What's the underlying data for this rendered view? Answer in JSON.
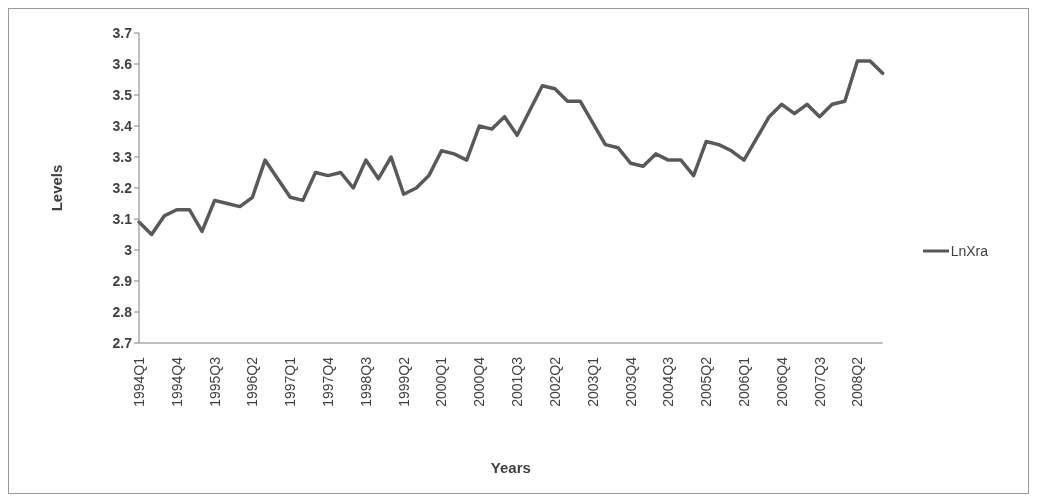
{
  "chart_data": {
    "type": "line",
    "xlabel": "Years",
    "ylabel": "Levels",
    "categories": [
      "1994Q1",
      null,
      null,
      "1994Q4",
      null,
      null,
      "1995Q3",
      null,
      null,
      "1996Q2",
      null,
      null,
      "1997Q1",
      null,
      null,
      "1997Q4",
      null,
      null,
      "1998Q3",
      null,
      null,
      "1999Q2",
      null,
      null,
      "2000Q1",
      null,
      null,
      "2000Q4",
      null,
      null,
      "2001Q3",
      null,
      null,
      "2002Q2",
      null,
      null,
      "2003Q1",
      null,
      null,
      "2003Q4",
      null,
      null,
      "2004Q3",
      null,
      null,
      "2005Q2",
      null,
      null,
      "2006Q1",
      null,
      null,
      "2006Q4",
      null,
      null,
      "2007Q3",
      null,
      null,
      "2008Q2",
      null,
      null
    ],
    "series": [
      {
        "name": "LnXra",
        "color": "#595959",
        "values": [
          3.09,
          3.05,
          3.11,
          3.13,
          3.13,
          3.06,
          3.16,
          3.15,
          3.14,
          3.17,
          3.29,
          3.23,
          3.17,
          3.16,
          3.25,
          3.24,
          3.25,
          3.2,
          3.29,
          3.23,
          3.3,
          3.18,
          3.2,
          3.24,
          3.32,
          3.31,
          3.29,
          3.4,
          3.39,
          3.43,
          3.37,
          3.45,
          3.53,
          3.52,
          3.48,
          3.48,
          3.41,
          3.34,
          3.33,
          3.28,
          3.27,
          3.31,
          3.29,
          3.29,
          3.24,
          3.35,
          3.34,
          3.32,
          3.29,
          3.36,
          3.43,
          3.47,
          3.44,
          3.47,
          3.43,
          3.47,
          3.48,
          3.61,
          3.61,
          3.57
        ]
      }
    ],
    "ylim": [
      2.7,
      3.7
    ],
    "yticks": [
      2.7,
      {
        "value": 2.8,
        "label": "2.8"
      },
      2.9,
      {
        "value": 3.0,
        "label": "3"
      },
      3.1,
      3.2,
      3.3,
      3.4,
      3.5,
      3.6,
      3.7
    ],
    "grid": false,
    "legend": "right",
    "marker": "none",
    "line_style": "solid"
  }
}
